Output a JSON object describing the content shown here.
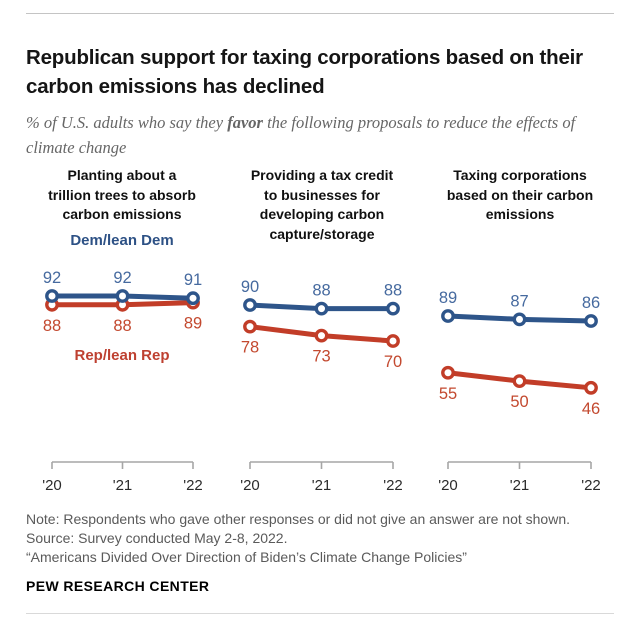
{
  "header": {
    "title": "Republican support for taxing corporations based on their carbon emissions has declined",
    "subtitle_prefix": "% of U.S. adults who say they ",
    "subtitle_bold": "favor",
    "subtitle_suffix": " the following proposals to reduce the effects of climate change"
  },
  "legend": {
    "dem_label": "Dem/lean Dem",
    "rep_label": "Rep/lean Rep"
  },
  "colors": {
    "dem_line": "#2e558a",
    "dem_text": "#466a9f",
    "dem_legend": "#2d5185",
    "rep_line": "#c23d28",
    "rep_text": "#c3492f",
    "rep_legend": "#be4030",
    "axis": "#a6a6a6",
    "tick_text": "#2b2b2b"
  },
  "chart_data": {
    "type": "line",
    "x_labels": [
      "'20",
      "'21",
      "'22"
    ],
    "ylim": [
      40,
      100
    ],
    "grid": false,
    "legend_position": "inline-first-panel",
    "panels": [
      {
        "title": "Planting about a\ntrillion trees to absorb\ncarbon emissions",
        "series": [
          {
            "name": "Dem/lean Dem",
            "values": [
              92,
              92,
              91
            ]
          },
          {
            "name": "Rep/lean Rep",
            "values": [
              88,
              88,
              89
            ]
          }
        ]
      },
      {
        "title": "Providing a tax credit\nto businesses for\ndeveloping carbon\ncapture/storage",
        "series": [
          {
            "name": "Dem/lean Dem",
            "values": [
              90,
              88,
              88
            ]
          },
          {
            "name": "Rep/lean Rep",
            "values": [
              78,
              73,
              70
            ]
          }
        ]
      },
      {
        "title": "Taxing corporations\nbased on their carbon\nemissions",
        "series": [
          {
            "name": "Dem/lean Dem",
            "values": [
              89,
              87,
              86
            ]
          },
          {
            "name": "Rep/lean Rep",
            "values": [
              55,
              50,
              46
            ]
          }
        ]
      }
    ]
  },
  "footer": {
    "note": "Note: Respondents who gave other responses or did not give an answer are not shown.",
    "source": "Source: Survey conducted May 2-8, 2022.",
    "report": "“Americans Divided Over Direction of Biden’s Climate Change Policies”",
    "brand": "PEW RESEARCH CENTER"
  }
}
